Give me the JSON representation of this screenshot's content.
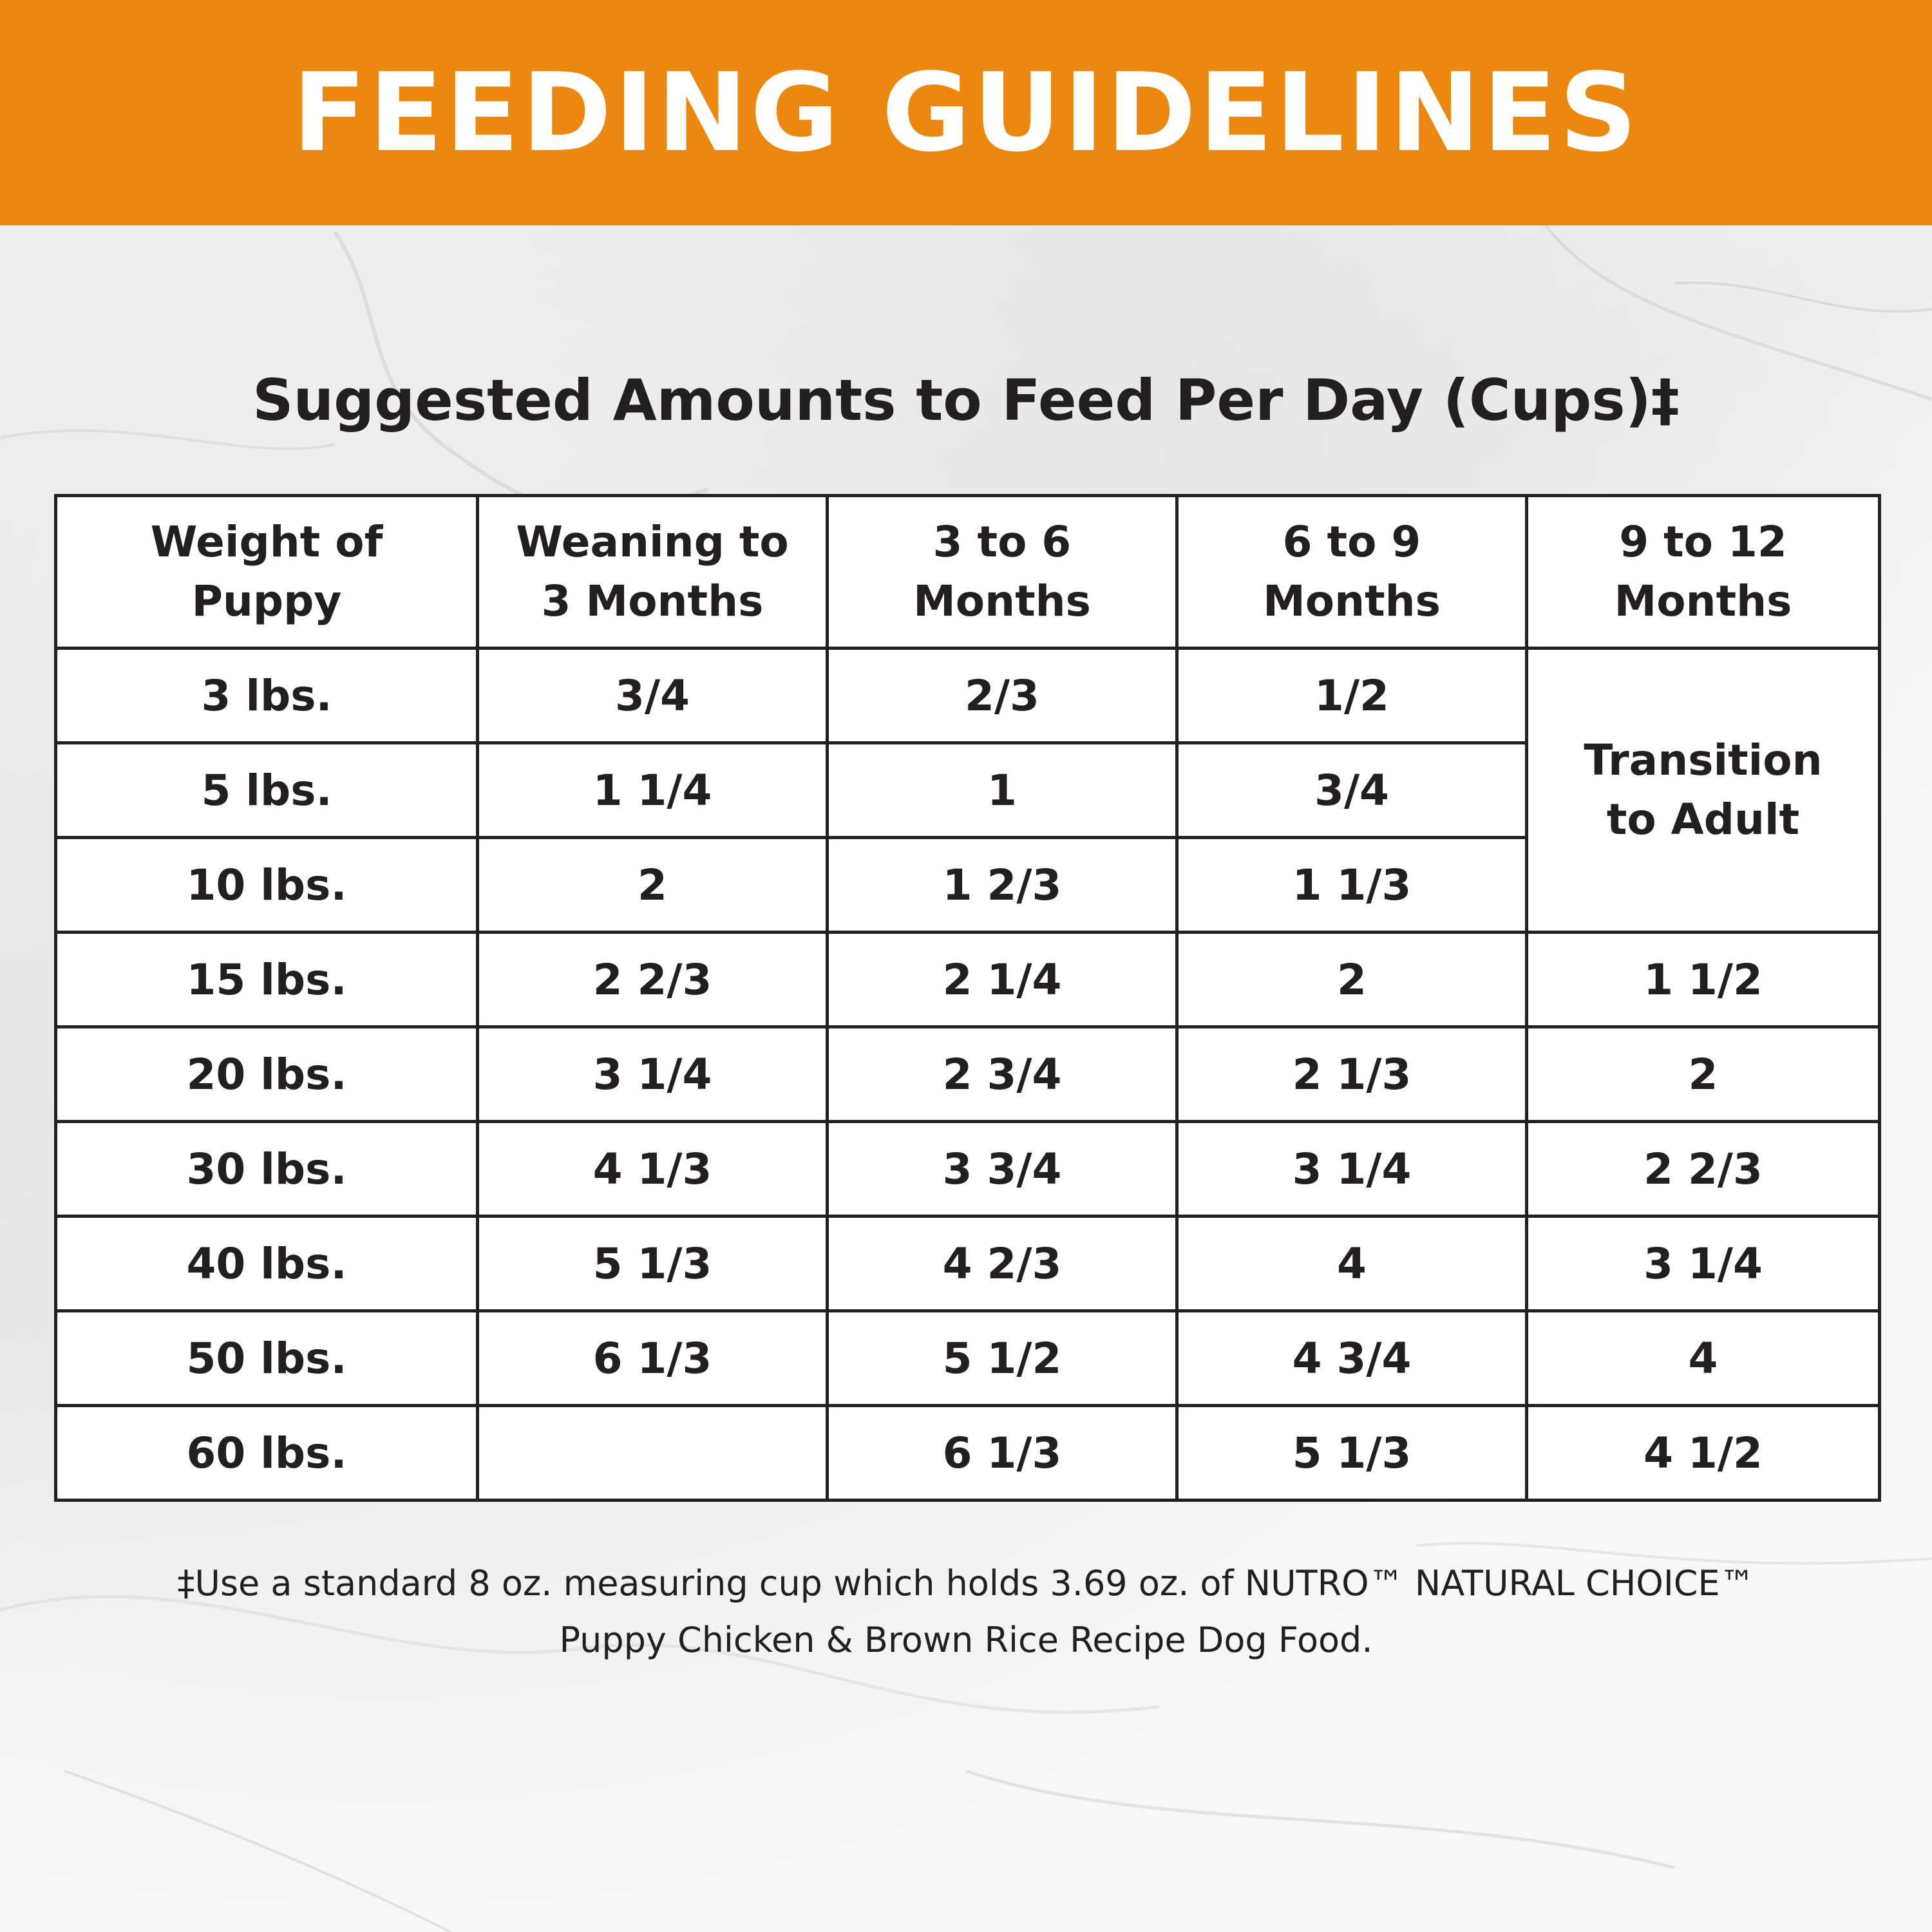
{
  "header": {
    "title": "FEEDING GUIDELINES"
  },
  "subtitle": "Suggested Amounts to Feed Per Day (Cups)‡",
  "table": {
    "headers": [
      [
        "Weight of",
        "Puppy"
      ],
      [
        "Weaning to",
        "3 Months"
      ],
      [
        "3 to 6",
        "Months"
      ],
      [
        "6 to 9",
        "Months"
      ],
      [
        "9 to 12",
        "Months"
      ]
    ],
    "merged_cell": [
      "Transition",
      "to Adult"
    ],
    "rows": [
      [
        "3 lbs.",
        "3/4",
        "2/3",
        "1/2"
      ],
      [
        "5 lbs.",
        "1 1/4",
        "1",
        "3/4"
      ],
      [
        "10 lbs.",
        "2",
        "1 2/3",
        "1 1/3"
      ],
      [
        "15 lbs.",
        "2 2/3",
        "2 1/4",
        "2",
        "1 1/2"
      ],
      [
        "20 lbs.",
        "3 1/4",
        "2 3/4",
        "2 1/3",
        "2"
      ],
      [
        "30 lbs.",
        "4 1/3",
        "3 3/4",
        "3 1/4",
        "2 2/3"
      ],
      [
        "40 lbs.",
        "5 1/3",
        "4 2/3",
        "4",
        "3 1/4"
      ],
      [
        "50 lbs.",
        "6 1/3",
        "5 1/2",
        "4 3/4",
        "4"
      ],
      [
        "60 lbs.",
        "",
        "6 1/3",
        "5 1/3",
        "4 1/2"
      ]
    ]
  },
  "footnote": {
    "line1": "‡Use a standard 8 oz. measuring cup which holds 3.69 oz. of NUTRO™ NATURAL CHOICE™",
    "line2": "Puppy Chicken & Brown Rice Recipe Dog Food."
  },
  "colors": {
    "header_bg": "#ec870f",
    "header_text": "#ffffff",
    "text": "#231f20"
  }
}
